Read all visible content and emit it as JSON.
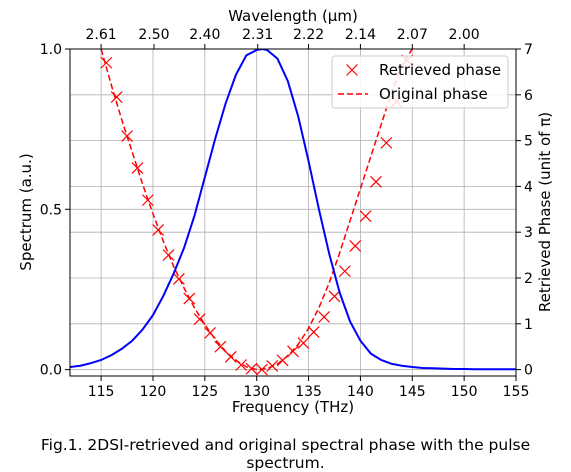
{
  "caption": "Fig.1. 2DSI-retrieved and original spectral phase with the pulse spectrum.",
  "chart_data": {
    "type": "line",
    "xlabel": "Frequency (THz)",
    "ylabel_left": "Spectrum (a.u.)",
    "ylabel_right": "Retrieved Phase (unit of π)",
    "xlabel_top": "Wavelength (μm)",
    "xlim": [
      112,
      155
    ],
    "ylim_left": [
      -0.02,
      1.0
    ],
    "ylim_right": [
      -0.14,
      7.0
    ],
    "x_ticks": [
      115,
      120,
      125,
      130,
      135,
      140,
      145,
      150,
      155
    ],
    "y_ticks_left": [
      0.0,
      0.5,
      1.0
    ],
    "y_ticks_left_labels": [
      "0.0",
      "0.5",
      "1.0"
    ],
    "y_ticks_right": [
      0,
      1,
      2,
      3,
      4,
      5,
      6,
      7
    ],
    "top_ticks": [
      {
        "label": "2.61",
        "freq": 115.0
      },
      {
        "label": "2.50",
        "freq": 120.1
      },
      {
        "label": "2.40",
        "freq": 125.0
      },
      {
        "label": "2.31",
        "freq": 130.1
      },
      {
        "label": "2.22",
        "freq": 135.0
      },
      {
        "label": "2.14",
        "freq": 140.0
      },
      {
        "label": "2.07",
        "freq": 145.0
      },
      {
        "label": "2.00",
        "freq": 150.0
      }
    ],
    "grid": true,
    "legend_position": "top-right",
    "series": [
      {
        "name": "Retrieved phase",
        "axis": "right",
        "style": "marker-x",
        "color": "#ff0000",
        "x": [
          115.5,
          116.5,
          117.5,
          118.5,
          119.5,
          120.5,
          121.5,
          122.5,
          123.5,
          124.5,
          125.5,
          126.5,
          127.5,
          128.5,
          129.5,
          130.5,
          131.5,
          132.5,
          133.5,
          134.5,
          135.5,
          136.5,
          137.5,
          138.5,
          139.5,
          140.5,
          141.5,
          142.5,
          143.5,
          144.5
        ],
        "y": [
          6.7,
          5.95,
          5.1,
          4.4,
          3.7,
          3.05,
          2.5,
          1.98,
          1.55,
          1.1,
          0.8,
          0.5,
          0.28,
          0.1,
          0.02,
          0.0,
          0.08,
          0.2,
          0.4,
          0.58,
          0.82,
          1.15,
          1.6,
          2.15,
          2.7,
          3.35,
          4.1,
          4.95,
          5.85,
          6.75
        ]
      },
      {
        "name": "Original phase",
        "axis": "right",
        "style": "dashed",
        "color": "#ff0000",
        "x": [
          115.0,
          116.0,
          117.0,
          118.0,
          119.0,
          120.0,
          121.0,
          122.0,
          123.0,
          124.0,
          125.0,
          126.0,
          127.0,
          128.0,
          129.0,
          130.0,
          131.0,
          132.0,
          133.0,
          134.0,
          135.0,
          136.0,
          137.0,
          138.0,
          139.0,
          140.0,
          141.0,
          142.0,
          143.0,
          144.0,
          145.0
        ],
        "y": [
          7.0,
          6.2,
          5.45,
          4.75,
          4.05,
          3.4,
          2.8,
          2.25,
          1.78,
          1.35,
          0.98,
          0.66,
          0.4,
          0.2,
          0.06,
          0.0,
          0.02,
          0.12,
          0.3,
          0.55,
          0.9,
          1.35,
          1.9,
          2.55,
          3.25,
          3.95,
          4.65,
          5.35,
          6.05,
          6.65,
          7.0
        ]
      },
      {
        "name": "",
        "axis": "left",
        "style": "solid",
        "color": "#0000ff",
        "x": [
          112,
          113,
          114,
          115,
          116,
          117,
          118,
          119,
          120,
          121,
          122,
          123,
          124,
          125,
          126,
          127,
          128,
          129,
          130,
          130.5,
          131,
          132,
          133,
          134,
          135,
          136,
          137,
          138,
          139,
          140,
          141,
          142,
          143,
          144,
          145,
          146,
          147,
          148,
          149,
          150,
          151,
          152,
          153,
          154,
          155
        ],
        "y": [
          0.008,
          0.012,
          0.02,
          0.03,
          0.045,
          0.065,
          0.09,
          0.125,
          0.17,
          0.23,
          0.3,
          0.38,
          0.48,
          0.6,
          0.72,
          0.83,
          0.92,
          0.98,
          0.997,
          1.0,
          0.997,
          0.97,
          0.9,
          0.79,
          0.65,
          0.5,
          0.36,
          0.24,
          0.15,
          0.09,
          0.05,
          0.03,
          0.018,
          0.012,
          0.008,
          0.005,
          0.004,
          0.003,
          0.002,
          0.002,
          0.001,
          0.001,
          0.001,
          0.001,
          0.001
        ]
      }
    ]
  }
}
